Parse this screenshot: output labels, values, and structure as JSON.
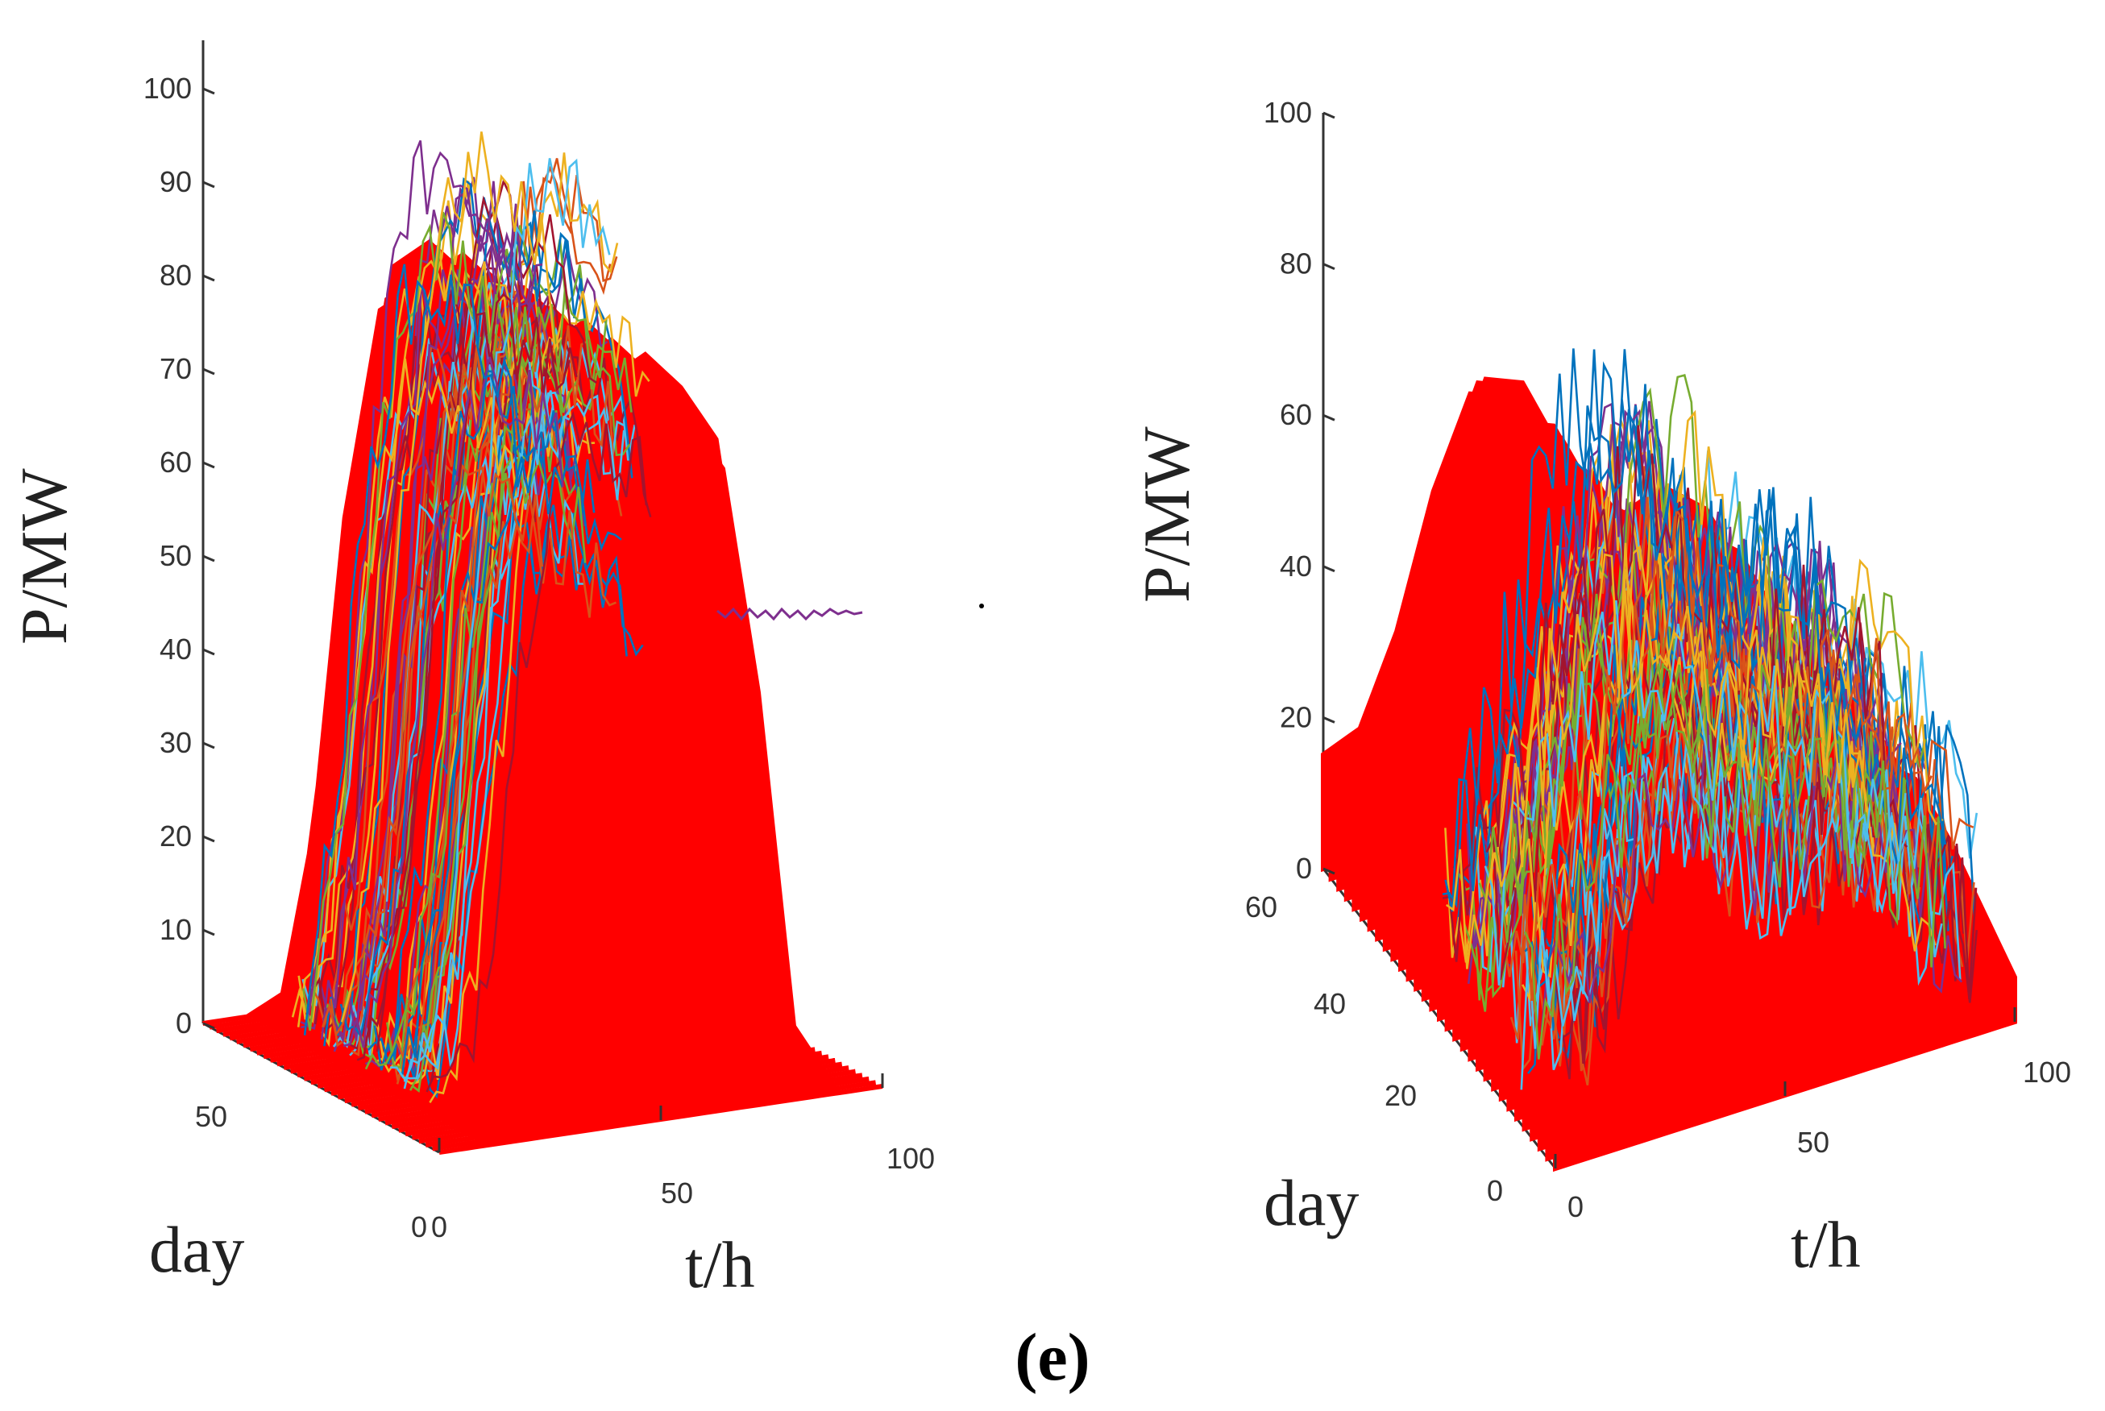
{
  "caption": "(e)",
  "chart_data": [
    {
      "type": "surface3d",
      "title": "",
      "zlabel": "P/MW",
      "ylabel": "day",
      "xlabel": "t/h",
      "zlim": [
        0,
        100
      ],
      "xlim": [
        0,
        100
      ],
      "ylim": [
        0,
        70
      ],
      "z_ticks": [
        "0",
        "10",
        "20",
        "30",
        "40",
        "50",
        "60",
        "70",
        "80",
        "90",
        "100"
      ],
      "x_ticks": [
        "0",
        "50",
        "100"
      ],
      "y_ticks": [
        "0",
        "50"
      ],
      "surface_color": "#ff0000",
      "surface_description": "forecast envelope",
      "envelope_profile": {
        "t": [
          0,
          10,
          18,
          25,
          32,
          40,
          48,
          56,
          64,
          72,
          80,
          90,
          100
        ],
        "p": [
          0,
          0,
          2,
          20,
          55,
          78,
          80,
          76,
          70,
          45,
          8,
          0,
          0
        ]
      },
      "scenario_line_count": 60,
      "scenario_peak_range": [
        55,
        95
      ],
      "line_colors": [
        "#0072bd",
        "#d95319",
        "#edb120",
        "#7e2f8e",
        "#77ac30",
        "#4dbeee",
        "#a2142f"
      ]
    },
    {
      "type": "surface3d",
      "title": "",
      "zlabel": "P/MW",
      "ylabel": "day",
      "xlabel": "t/h",
      "zlim": [
        0,
        100
      ],
      "xlim": [
        0,
        100
      ],
      "ylim": [
        0,
        60
      ],
      "z_ticks": [
        "0",
        "20",
        "40",
        "60",
        "80",
        "100"
      ],
      "x_ticks": [
        "0",
        "50",
        "100"
      ],
      "y_ticks": [
        "0",
        "20",
        "40",
        "60"
      ],
      "surface_color": "#ff0000",
      "surface_description": "forecast envelope",
      "envelope_profile": {
        "t": [
          0,
          8,
          16,
          24,
          32,
          40,
          48,
          56,
          64,
          72,
          80,
          88,
          100
        ],
        "p": [
          16,
          18,
          30,
          48,
          60,
          58,
          48,
          40,
          36,
          38,
          34,
          24,
          6
        ]
      },
      "scenario_line_count": 45,
      "scenario_peak_range": [
        30,
        78
      ],
      "line_colors": [
        "#0072bd",
        "#d95319",
        "#edb120",
        "#7e2f8e",
        "#77ac30",
        "#4dbeee",
        "#a2142f"
      ]
    }
  ]
}
